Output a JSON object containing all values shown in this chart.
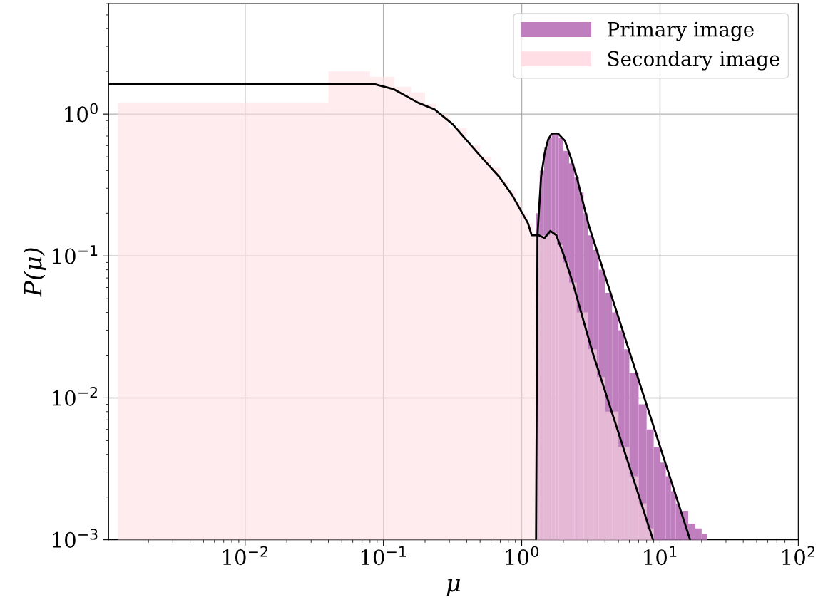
{
  "chart_data": {
    "type": "histogram",
    "xlabel": "μ",
    "ylabel": "P(μ)",
    "log": "xy",
    "xlim": [
      0.00103,
      100
    ],
    "ylim": [
      0.001,
      6
    ],
    "xticks": [
      {
        "value": 0.01,
        "label": "10$^{−2}$"
      },
      {
        "value": 0.1,
        "label": "10$^{−1}$"
      },
      {
        "value": 1,
        "label": "10$^{0}$"
      },
      {
        "value": 10,
        "label": "10$^{1}$"
      },
      {
        "value": 100,
        "label": "10$^{2}$"
      }
    ],
    "yticks": [
      {
        "value": 0.001,
        "label": "10$^{−3}$"
      },
      {
        "value": 0.01,
        "label": "10$^{−2}$"
      },
      {
        "value": 0.1,
        "label": "10$^{−1}$"
      },
      {
        "value": 1,
        "label": "10$^{0}$"
      }
    ],
    "grid": true,
    "legend": "top right",
    "series": [
      {
        "name": "Secondary image",
        "color": "#ffdfe5",
        "bins": [
          0.0012,
          0.04,
          0.08,
          0.12,
          0.16,
          0.2,
          0.24,
          0.3,
          0.4,
          0.5,
          0.6,
          0.7,
          0.8,
          0.9,
          1.0,
          1.1,
          1.2,
          1.4,
          1.6,
          1.8,
          2.0,
          2.2,
          2.5,
          3,
          3.5,
          4,
          5,
          6,
          7,
          8,
          9
        ],
        "values": [
          1.21,
          2.0,
          1.83,
          1.56,
          1.42,
          1.18,
          1.0,
          0.8,
          0.6,
          0.5,
          0.42,
          0.34,
          0.29,
          0.24,
          0.2,
          0.17,
          0.14,
          0.14,
          0.145,
          0.12,
          0.09,
          0.065,
          0.04,
          0.022,
          0.014,
          0.008,
          0.0045,
          0.0028,
          0.0018,
          0.0012
        ]
      },
      {
        "name": "Primary image",
        "color": "#bf7fbf",
        "bins": [
          1.27,
          1.35,
          1.45,
          1.55,
          1.65,
          1.75,
          1.85,
          2.0,
          2.2,
          2.4,
          2.6,
          2.8,
          3.0,
          3.3,
          3.6,
          4,
          4.5,
          5,
          5.5,
          6,
          7,
          8,
          9,
          10,
          11,
          12,
          13,
          14,
          16,
          18,
          20,
          22
        ],
        "values": [
          0.2,
          0.4,
          0.58,
          0.68,
          0.72,
          0.72,
          0.68,
          0.55,
          0.45,
          0.36,
          0.28,
          0.2,
          0.14,
          0.11,
          0.08,
          0.055,
          0.04,
          0.03,
          0.022,
          0.015,
          0.009,
          0.006,
          0.0045,
          0.0035,
          0.0028,
          0.0022,
          0.0018,
          0.0016,
          0.0013,
          0.0012,
          0.0011
        ]
      },
      {
        "type": "line",
        "color": "#000000",
        "x": [
          0.00103,
          0.087,
          0.118,
          0.179,
          0.234,
          0.316,
          0.49,
          0.69,
          0.85,
          1.11,
          1.18,
          1.33,
          1.46,
          1.61,
          1.78,
          2.0,
          2.34,
          2.75,
          3.3,
          8.9
        ],
        "values": [
          1.62,
          1.62,
          1.5,
          1.2,
          1.08,
          0.85,
          0.52,
          0.36,
          0.27,
          0.17,
          0.14,
          0.14,
          0.134,
          0.15,
          0.14,
          0.103,
          0.065,
          0.037,
          0.02,
          0.001
        ]
      },
      {
        "type": "line",
        "color": "#000000",
        "x": [
          1.27,
          1.3,
          1.38,
          1.46,
          1.55,
          1.65,
          1.83,
          2.05,
          2.27,
          2.5,
          2.77,
          3.05,
          16.5
        ],
        "values": [
          0.001,
          0.14,
          0.36,
          0.52,
          0.66,
          0.73,
          0.73,
          0.65,
          0.49,
          0.36,
          0.24,
          0.165,
          0.001
        ]
      }
    ]
  }
}
